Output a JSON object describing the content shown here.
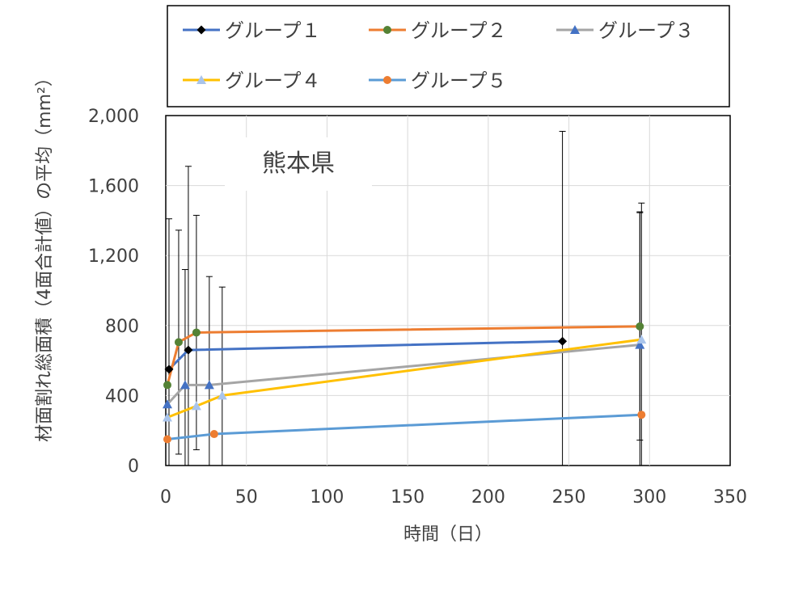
{
  "chart_data": {
    "type": "line",
    "title": "",
    "annotation": "熊本県",
    "xlabel": "時間（日）",
    "ylabel": "材面割れ総面積（4面合計値）の平均（mm²）",
    "xlim": [
      0,
      350
    ],
    "ylim": [
      0,
      2000
    ],
    "x_ticks": [
      "0",
      "50",
      "100",
      "150",
      "200",
      "250",
      "300",
      "350"
    ],
    "y_ticks": [
      "0",
      "400",
      "800",
      "1,200",
      "1,600",
      "2,000"
    ],
    "grid": true,
    "legend_position": "top",
    "series": [
      {
        "name": "グループ１",
        "color": "#4472C4",
        "marker_color": "#000000",
        "marker": "diamond",
        "points": [
          {
            "x": 2,
            "y": 550,
            "err": 860
          },
          {
            "x": 14,
            "y": 660,
            "err": 1050
          },
          {
            "x": 246,
            "y": 710,
            "err": 1200
          }
        ]
      },
      {
        "name": "グループ２",
        "color": "#ED7D31",
        "marker_color": "#548235",
        "marker": "circle",
        "points": [
          {
            "x": 1,
            "y": 460,
            "err": 0
          },
          {
            "x": 8,
            "y": 705,
            "err": 640
          },
          {
            "x": 19,
            "y": 760,
            "err": 670
          },
          {
            "x": 294,
            "y": 795,
            "err": 650
          }
        ]
      },
      {
        "name": "グループ３",
        "color": "#A5A5A5",
        "marker_color": "#4472C4",
        "marker": "triangle",
        "points": [
          {
            "x": 1,
            "y": 350,
            "err": 0
          },
          {
            "x": 12,
            "y": 460,
            "err": 660
          },
          {
            "x": 27,
            "y": 460,
            "err": 620
          },
          {
            "x": 294,
            "y": 690,
            "err": 760
          }
        ]
      },
      {
        "name": "グループ４",
        "color": "#FFC000",
        "marker_color": "#A9C4EB",
        "marker": "triangle",
        "points": [
          {
            "x": 1,
            "y": 275,
            "err": 0
          },
          {
            "x": 19,
            "y": 340,
            "err": 0
          },
          {
            "x": 35,
            "y": 400,
            "err": 620
          },
          {
            "x": 295,
            "y": 720,
            "err": 780
          }
        ]
      },
      {
        "name": "グループ５",
        "color": "#5B9BD5",
        "marker_color": "#ED7D31",
        "marker": "circle",
        "points": [
          {
            "x": 1,
            "y": 150,
            "err": 0
          },
          {
            "x": 30,
            "y": 180,
            "err": 0
          },
          {
            "x": 295,
            "y": 290,
            "err": 0
          }
        ]
      }
    ]
  }
}
